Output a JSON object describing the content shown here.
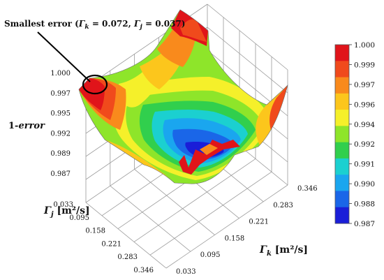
{
  "chart_data": {
    "type": "surface3d",
    "annotation": {
      "text": "Smallest error",
      "parts": [
        "(",
        "Γ",
        "k",
        " = 0.072, ",
        "Γ",
        "j",
        " = 0.037)"
      ],
      "point": {
        "gamma_k": 0.072,
        "gamma_j": 0.037
      }
    },
    "zlabel": {
      "prefix": "1-",
      "italic": "error"
    },
    "xlabel": {
      "symbol": "Γ",
      "sub": "j",
      "unit": " [m²/s]"
    },
    "ylabel": {
      "symbol": "Γ",
      "sub": "k",
      "unit": " [m²/s]"
    },
    "z_ticks": [
      "1.000",
      "0.997",
      "0.995",
      "0.992",
      "0.989",
      "0.987"
    ],
    "gamma_j_ticks": [
      "0.033",
      "0.095",
      "0.158",
      "0.221",
      "0.283",
      "0.346"
    ],
    "gamma_k_ticks": [
      "0.033",
      "0.095",
      "0.158",
      "0.221",
      "0.283",
      "0.346"
    ],
    "zlim": [
      0.987,
      1.0
    ],
    "colorbar": {
      "labels": [
        "1.000",
        "0.999",
        "0.997",
        "0.996",
        "0.994",
        "0.992",
        "0.991",
        "0.990",
        "0.988",
        "0.987"
      ],
      "colors": [
        "#e0141a",
        "#f04a1c",
        "#f98a1c",
        "#fcc61c",
        "#f5f02a",
        "#8ee52a",
        "#31cf4d",
        "#1bd0d0",
        "#1aa6ef",
        "#1a66e8",
        "#1a1ed8"
      ]
    },
    "surface_regions": [
      {
        "description": "corner peak",
        "gamma_j": 0.033,
        "gamma_k": 0.033,
        "value": 1.0
      },
      {
        "description": "far peak",
        "gamma_j": 0.033,
        "gamma_k": 0.346,
        "value": 1.0
      },
      {
        "description": "left corner",
        "gamma_j": 0.346,
        "gamma_k": 0.033,
        "value": 0.993
      },
      {
        "description": "right corner",
        "gamma_j": 0.346,
        "gamma_k": 0.346,
        "value": 0.993
      },
      {
        "description": "valley minimum",
        "gamma_j": 0.221,
        "gamma_k": 0.221,
        "value": 0.987
      }
    ]
  }
}
